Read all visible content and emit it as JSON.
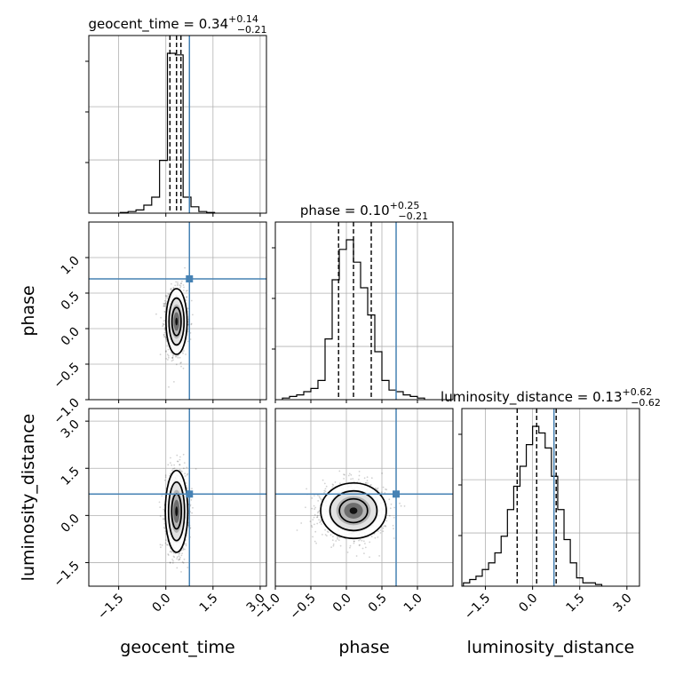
{
  "chart_data": {
    "type": "corner",
    "parameters": [
      "geocent_time",
      "phase",
      "luminosity_distance"
    ],
    "truths": [
      0.75,
      0.7,
      0.68
    ],
    "truth_color": "#4682b4",
    "grid": true,
    "titles": [
      {
        "name": "geocent_time",
        "median": "0.34",
        "plus": "+0.14",
        "minus": "−0.21"
      },
      {
        "name": "phase",
        "median": "0.10",
        "plus": "+0.25",
        "minus": "−0.21"
      },
      {
        "name": "luminosity_distance",
        "median": "0.13",
        "plus": "+0.62",
        "minus": "−0.62"
      }
    ],
    "axes": {
      "geocent_time": {
        "range": [
          -2.45,
          3.2
        ],
        "ticks": [
          "−1.5",
          "0.0",
          "1.5",
          "3.0"
        ],
        "tick_values": [
          -1.5,
          0.0,
          1.5,
          3.0
        ]
      },
      "phase": {
        "range": [
          -1.0,
          1.5
        ],
        "ticks": [
          "−1.0",
          "−0.5",
          "0.0",
          "0.5",
          "1.0"
        ],
        "tick_values": [
          -1.0,
          -0.5,
          0.0,
          0.5,
          1.0
        ]
      },
      "luminosity_distance": {
        "range": [
          -2.25,
          3.4
        ],
        "ticks": [
          "−1.5",
          "0.0",
          "1.5",
          "3.0"
        ],
        "tick_values": [
          -1.5,
          0.0,
          1.5,
          3.0
        ]
      }
    },
    "quantiles": {
      "geocent_time": [
        0.13,
        0.34,
        0.48
      ],
      "phase": [
        -0.11,
        0.1,
        0.35
      ],
      "luminosity_distance": [
        -0.49,
        0.13,
        0.75
      ]
    },
    "histograms": {
      "geocent_time": {
        "bins": [
          -1.45,
          -1.2,
          -0.95,
          -0.7,
          -0.45,
          -0.2,
          0.05,
          0.3,
          0.55,
          0.8,
          1.05,
          1.3,
          1.55
        ],
        "counts": [
          0.004,
          0.01,
          0.02,
          0.05,
          0.1,
          0.33,
          1.0,
          0.99,
          0.1,
          0.04,
          0.01,
          0.004
        ]
      },
      "phase": {
        "bins": [
          -0.9,
          -0.8,
          -0.7,
          -0.6,
          -0.5,
          -0.4,
          -0.3,
          -0.2,
          -0.1,
          0.0,
          0.1,
          0.2,
          0.3,
          0.4,
          0.5,
          0.6,
          0.7,
          0.8,
          0.9,
          1.0,
          1.1
        ],
        "counts": [
          0.01,
          0.02,
          0.03,
          0.05,
          0.07,
          0.12,
          0.38,
          0.75,
          0.94,
          1.0,
          0.86,
          0.7,
          0.53,
          0.3,
          0.12,
          0.06,
          0.05,
          0.03,
          0.02,
          0.01
        ]
      },
      "luminosity_distance": {
        "bins": [
          -2.2,
          -2.0,
          -1.8,
          -1.6,
          -1.4,
          -1.2,
          -1.0,
          -0.8,
          -0.6,
          -0.4,
          -0.2,
          0.0,
          0.2,
          0.4,
          0.6,
          0.8,
          1.0,
          1.2,
          1.4,
          1.6,
          1.8,
          2.0,
          2.2
        ],
        "counts": [
          0.02,
          0.04,
          0.06,
          0.1,
          0.14,
          0.2,
          0.3,
          0.46,
          0.6,
          0.72,
          0.85,
          0.96,
          0.92,
          0.83,
          0.66,
          0.46,
          0.28,
          0.14,
          0.05,
          0.02,
          0.02,
          0.01
        ]
      }
    },
    "contours_2d": [
      {
        "x": "geocent_time",
        "y": "phase",
        "center": [
          0.34,
          0.1
        ],
        "sigma": [
          0.16,
          0.22
        ]
      },
      {
        "x": "geocent_time",
        "y": "luminosity_distance",
        "center": [
          0.34,
          0.13
        ],
        "sigma": [
          0.17,
          0.62
        ]
      },
      {
        "x": "phase",
        "y": "luminosity_distance",
        "center": [
          0.1,
          0.15
        ],
        "sigma": [
          0.22,
          0.42
        ]
      }
    ]
  }
}
